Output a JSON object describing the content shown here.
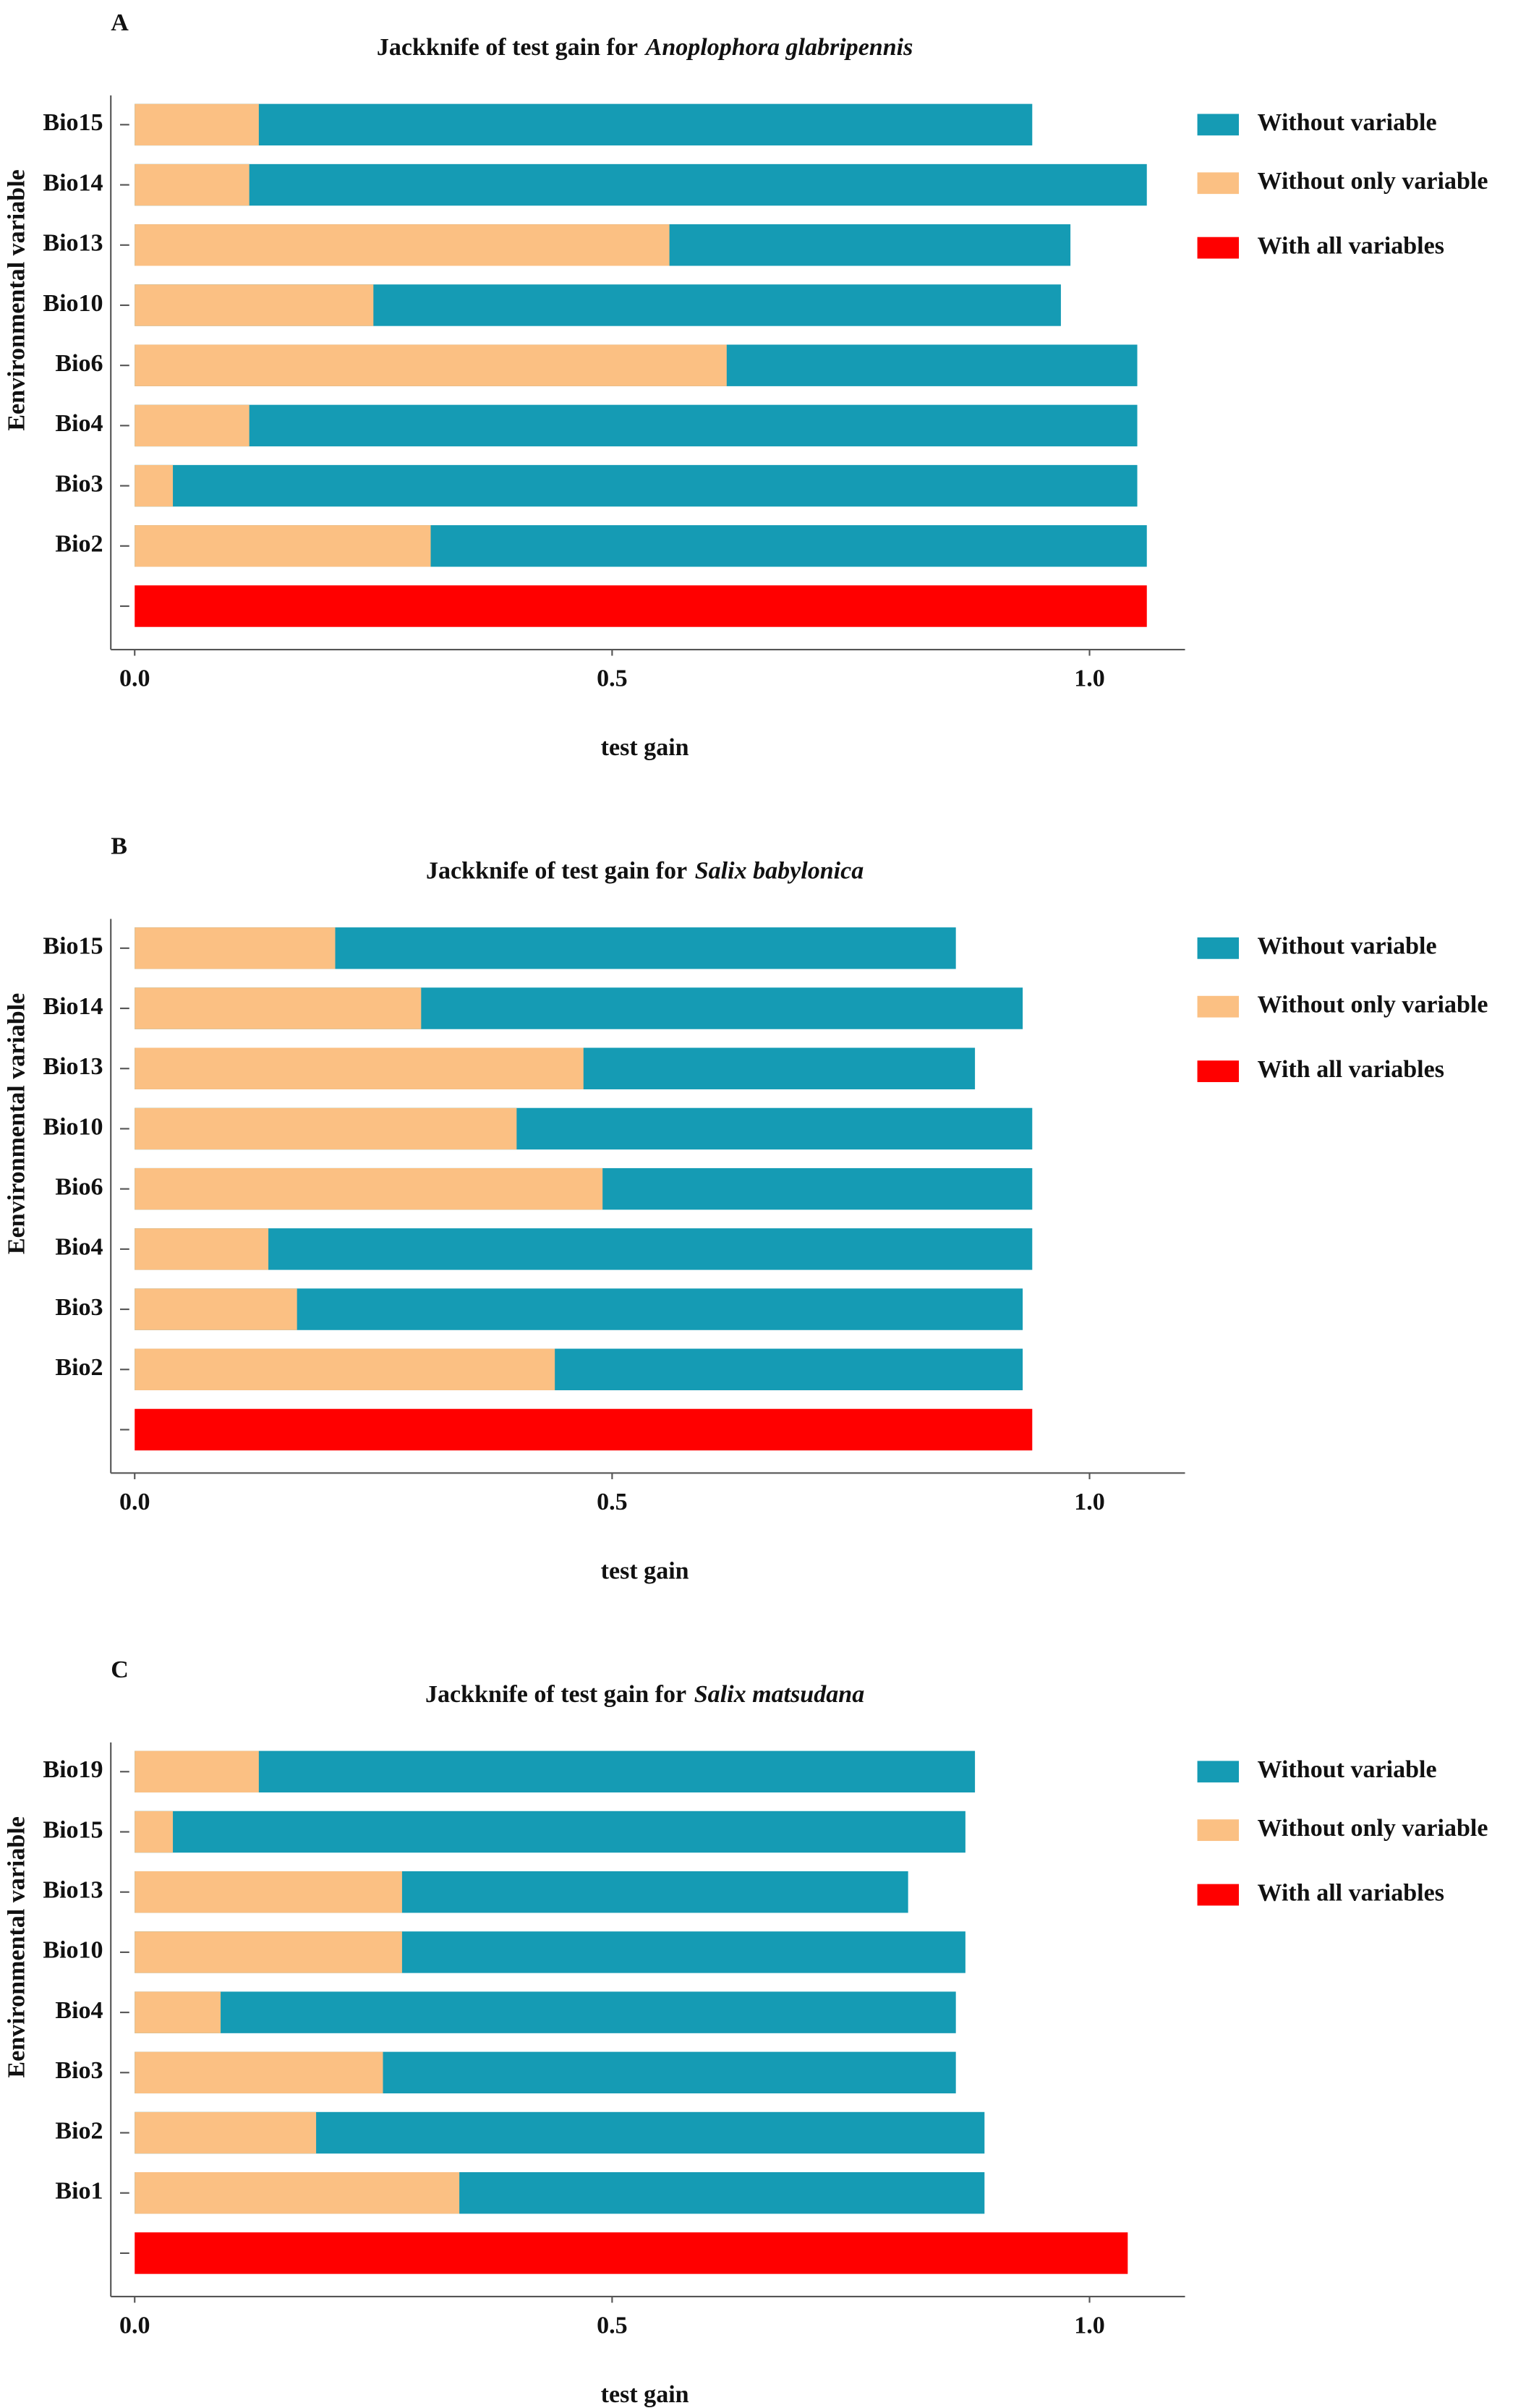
{
  "chart_data": [
    {
      "type": "bar",
      "panel_label": "A",
      "title": "Jackknife of test gain for",
      "title_italic": "Anoplophora glabripennis",
      "x_label": "test gain",
      "y_label": "Eenvironmental variable",
      "categories": [
        "Bio15",
        "Bio14",
        "Bio13",
        "Bio10",
        "Bio6",
        "Bio4",
        "Bio3",
        "Bio2",
        null
      ],
      "series": [
        {
          "name": "Without variable",
          "color": "#159bb4",
          "values": [
            0.94,
            1.06,
            0.98,
            0.97,
            1.05,
            1.05,
            1.05,
            1.06,
            null
          ]
        },
        {
          "name": "Without only variable",
          "color": "#fbc083",
          "values": [
            0.13,
            0.12,
            0.56,
            0.25,
            0.62,
            0.12,
            0.04,
            0.31,
            null
          ]
        },
        {
          "name": "With all variables",
          "color": "#ff0000",
          "values": [
            null,
            null,
            null,
            null,
            null,
            null,
            null,
            null,
            1.06
          ]
        }
      ],
      "xlim": [
        -0.025,
        1.1
      ],
      "xticks": [
        {
          "value": 0,
          "label": "0.0"
        },
        {
          "value": 0.5,
          "label": "0.5"
        },
        {
          "value": 1,
          "label": "1.0"
        }
      ],
      "grid": false
    },
    {
      "type": "bar",
      "panel_label": "B",
      "title": "Jackknife of test gain for",
      "title_italic": "Salix babylonica",
      "x_label": "test gain",
      "y_label": "Eenvironmental variable",
      "categories": [
        "Bio15",
        "Bio14",
        "Bio13",
        "Bio10",
        "Bio6",
        "Bio4",
        "Bio3",
        "Bio2",
        null
      ],
      "series": [
        {
          "name": "Without variable",
          "color": "#159bb4",
          "values": [
            0.86,
            0.93,
            0.88,
            0.94,
            0.94,
            0.94,
            0.93,
            0.93,
            null
          ]
        },
        {
          "name": "Without only variable",
          "color": "#fbc083",
          "values": [
            0.21,
            0.3,
            0.47,
            0.4,
            0.49,
            0.14,
            0.17,
            0.44,
            null
          ]
        },
        {
          "name": "With all variables",
          "color": "#ff0000",
          "values": [
            null,
            null,
            null,
            null,
            null,
            null,
            null,
            null,
            0.94
          ]
        }
      ],
      "xlim": [
        -0.025,
        1.1
      ],
      "xticks": [
        {
          "value": 0,
          "label": "0.0"
        },
        {
          "value": 0.5,
          "label": "0.5"
        },
        {
          "value": 1,
          "label": "1.0"
        }
      ],
      "grid": false
    },
    {
      "type": "bar",
      "panel_label": "C",
      "title": "Jackknife of test gain for",
      "title_italic": "Salix matsudana",
      "x_label": "test gain",
      "y_label": "Eenvironmental variable",
      "categories": [
        "Bio19",
        "Bio15",
        "Bio13",
        "Bio10",
        "Bio4",
        "Bio3",
        "Bio2",
        "Bio1",
        null
      ],
      "series": [
        {
          "name": "Without variable",
          "color": "#159bb4",
          "values": [
            0.88,
            0.87,
            0.81,
            0.87,
            0.86,
            0.86,
            0.89,
            0.89,
            null
          ]
        },
        {
          "name": "Without only variable",
          "color": "#fbc083",
          "values": [
            0.13,
            0.04,
            0.28,
            0.28,
            0.09,
            0.26,
            0.19,
            0.34,
            null
          ]
        },
        {
          "name": "With all variables",
          "color": "#ff0000",
          "values": [
            null,
            null,
            null,
            null,
            null,
            null,
            null,
            null,
            1.04
          ]
        }
      ],
      "xlim": [
        -0.025,
        1.1
      ],
      "xticks": [
        {
          "value": 0,
          "label": "0.0"
        },
        {
          "value": 0.5,
          "label": "0.5"
        },
        {
          "value": 1,
          "label": "1.0"
        }
      ],
      "grid": false
    }
  ]
}
